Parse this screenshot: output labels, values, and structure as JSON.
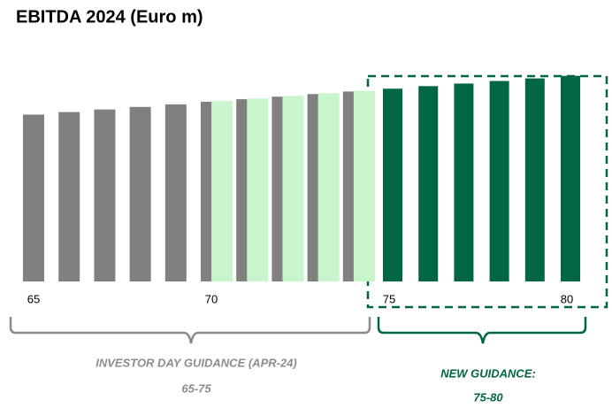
{
  "chart_data": {
    "type": "bar",
    "title": "EBITDA 2024 (Euro m)",
    "series": [
      {
        "color": "#808080",
        "values": [
          65,
          66,
          67,
          68,
          69,
          70,
          71,
          72,
          73,
          74
        ]
      },
      {
        "color": "#c8f5cc",
        "values": [
          70.3,
          71.3,
          72.3,
          73.3,
          74.3
        ]
      },
      {
        "color": "#006644",
        "values": [
          75.1,
          76.1,
          77.1,
          78.1,
          79.1,
          80.1
        ]
      }
    ],
    "xlim": [
      65,
      80
    ],
    "xticks": [
      65,
      70,
      75,
      80
    ],
    "ylim": [
      0,
      80
    ],
    "annotations": [
      {
        "text": "INVESTOR DAY GUIDANCE (APR-24)",
        "range": "65-75",
        "color": "#8c8c8c"
      },
      {
        "text": "NEW GUIDANCE:",
        "range": "75-80",
        "color": "#006644"
      }
    ]
  }
}
